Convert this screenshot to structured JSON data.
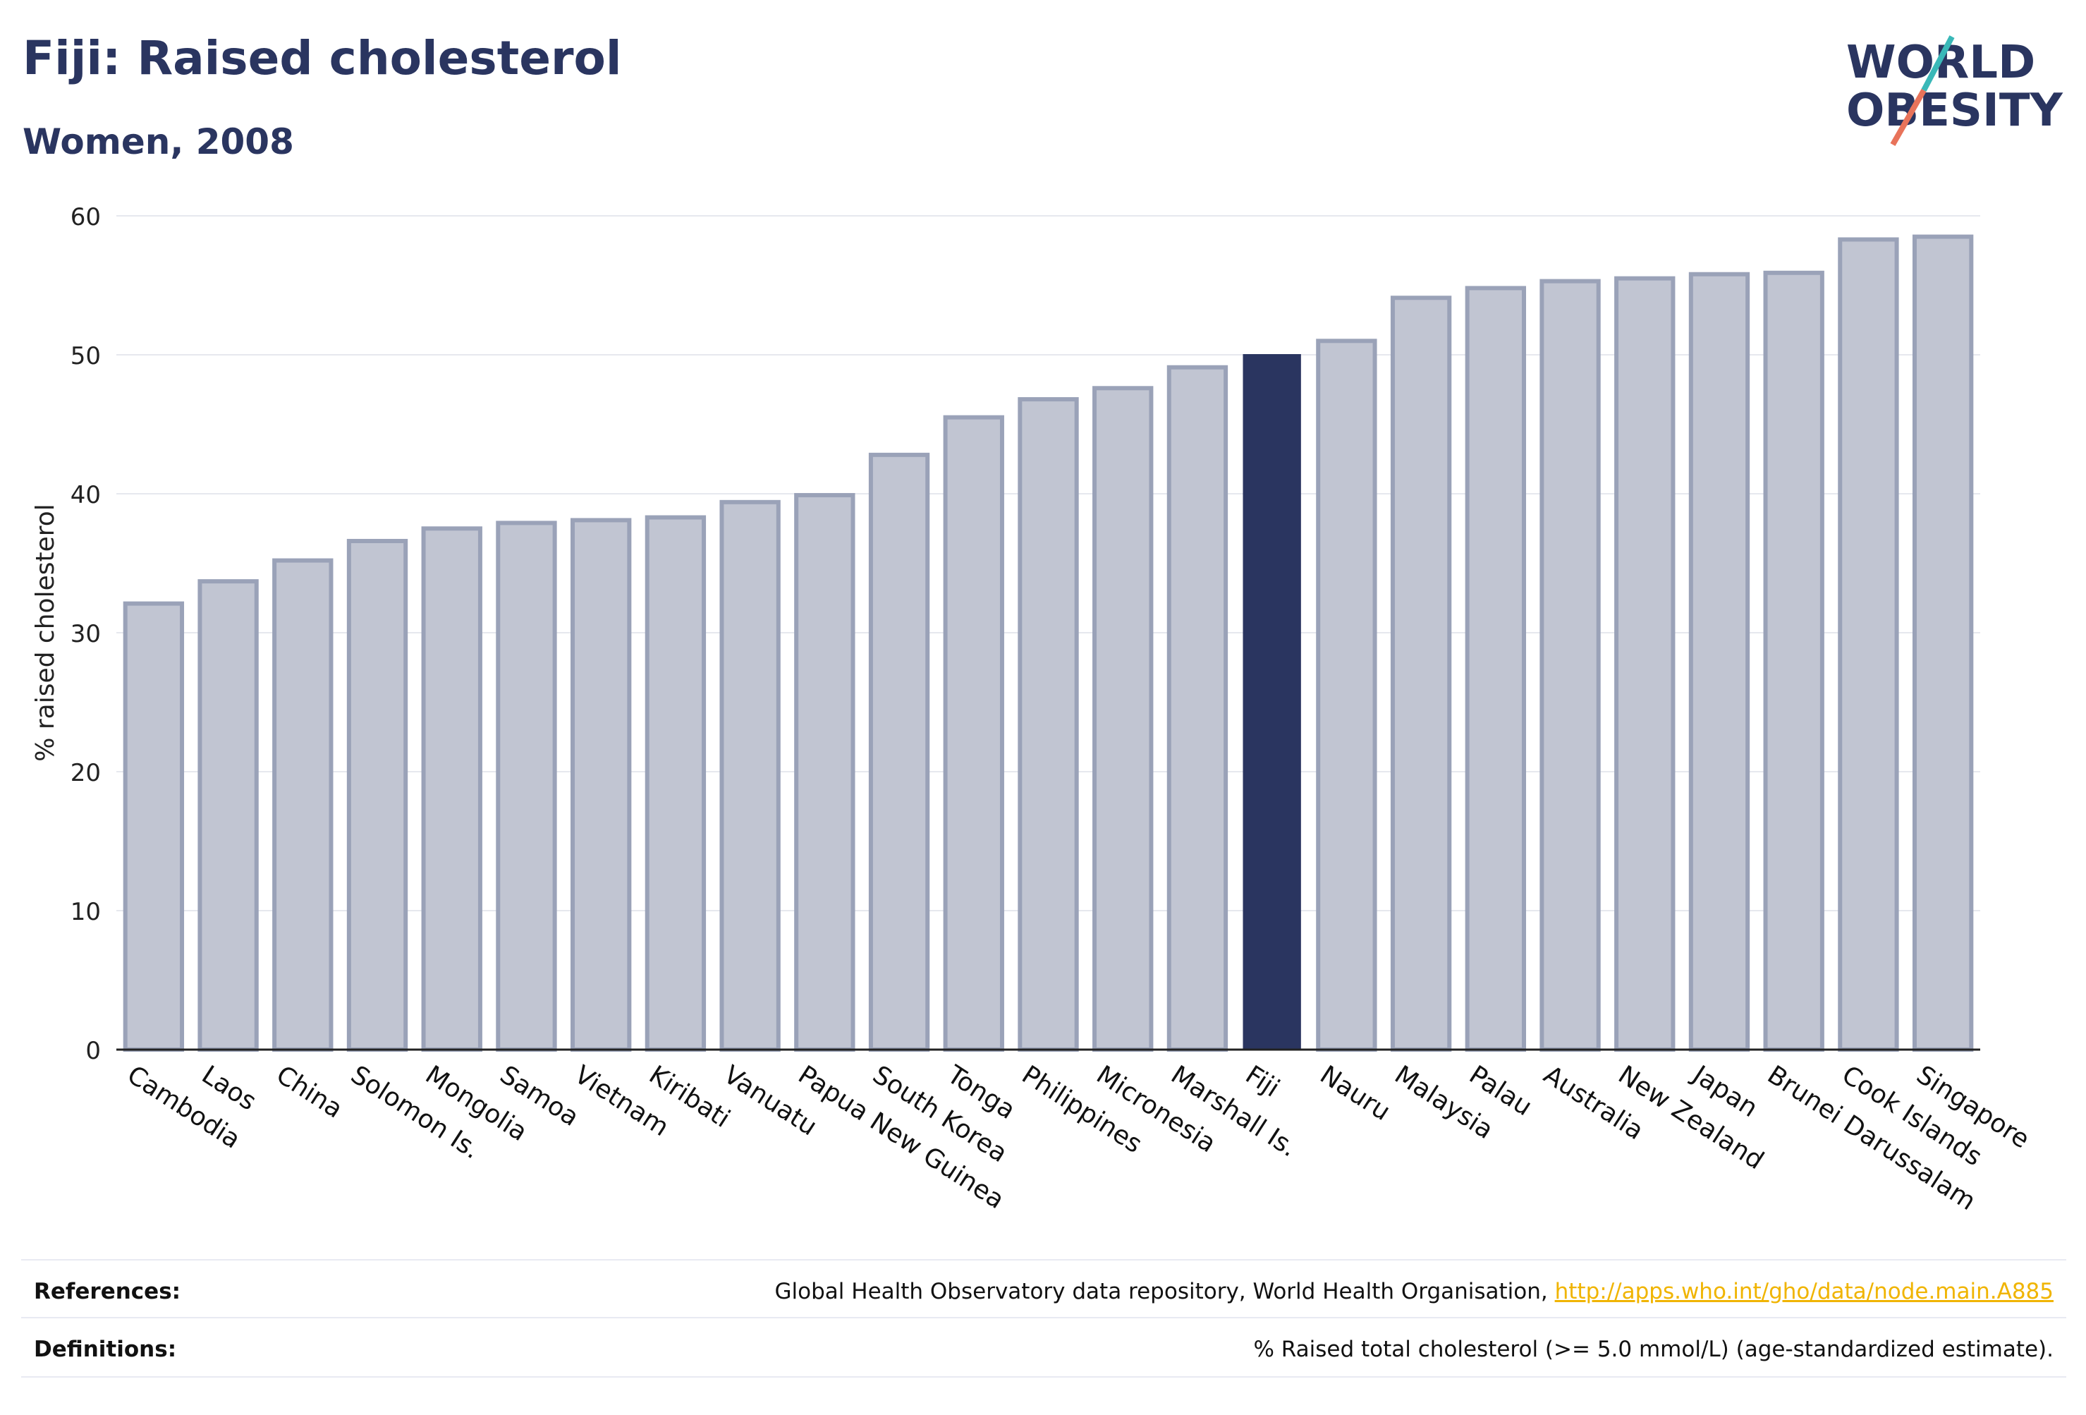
{
  "header": {
    "title": "Fiji: Raised cholesterol",
    "subtitle": "Women, 2008"
  },
  "logo": {
    "line1": "WORLD",
    "line2": "OBESITY",
    "accent_colors": [
      "#3ab8b8",
      "#e8735a"
    ]
  },
  "chart_data": {
    "type": "bar",
    "title": "Fiji: Raised cholesterol",
    "subtitle": "Women, 2008",
    "ylabel": "% raised cholesterol",
    "xlabel": "",
    "ylim": [
      0,
      60
    ],
    "yticks": [
      0,
      10,
      20,
      30,
      40,
      50,
      60
    ],
    "grid": true,
    "highlight": "Fiji",
    "colors": {
      "bar": "#c1c5d2",
      "bar_edge": "#9aa2b8",
      "highlight": "#2a3560",
      "grid": "#e6e8ee"
    },
    "categories": [
      "Cambodia",
      "Laos",
      "China",
      "Solomon Is.",
      "Mongolia",
      "Samoa",
      "Vietnam",
      "Kiribati",
      "Vanuatu",
      "Papua New Guinea",
      "South Korea",
      "Tonga",
      "Philippines",
      "Micronesia",
      "Marshall Is.",
      "Fiji",
      "Nauru",
      "Malaysia",
      "Palau",
      "Australia",
      "New Zealand",
      "Japan",
      "Brunei Darussalam",
      "Cook Islands",
      "Singapore"
    ],
    "values": [
      32.1,
      33.7,
      35.2,
      36.6,
      37.5,
      37.9,
      38.1,
      38.3,
      39.4,
      39.9,
      42.8,
      45.5,
      46.8,
      47.6,
      49.1,
      50.0,
      51.0,
      54.1,
      54.8,
      55.3,
      55.5,
      55.8,
      55.9,
      58.3,
      58.5
    ]
  },
  "footer": {
    "references_label": "References:",
    "references_text": "Global Health Observatory data repository, World Health Organisation, ",
    "references_link": "http://apps.who.int/gho/data/node.main.A885",
    "definitions_label": "Definitions:",
    "definitions_text": "% Raised total cholesterol (>= 5.0 mmol/L) (age-standardized estimate)."
  }
}
